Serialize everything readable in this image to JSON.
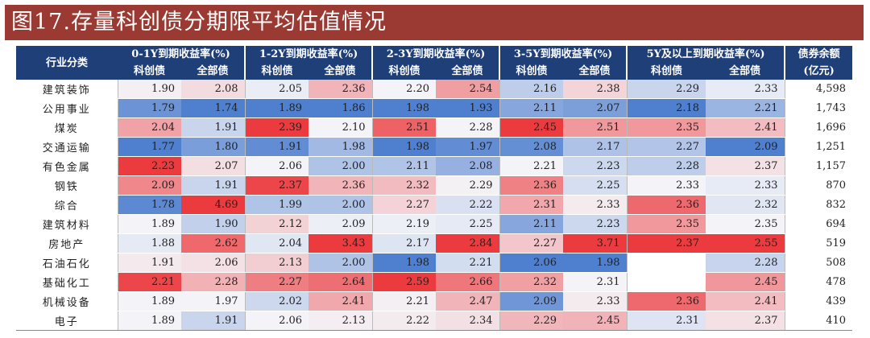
{
  "title": "图17.存量科创债分期限平均估值情况",
  "header": {
    "industry": "行业分类",
    "groups": [
      "0-1Y到期收益率(%)",
      "1-2Y到期收益率(%)",
      "2-3Y到期收益率(%)",
      "3-5Y到期收益率(%)",
      "5Y及以上到期收益率(%)"
    ],
    "sub": [
      "科创债",
      "全部债"
    ],
    "balance_l1": "债券余额",
    "balance_l2": "(亿元)"
  },
  "rows": [
    {
      "name": "建筑装饰",
      "v": [
        "1.90",
        "2.08",
        "2.05",
        "2.36",
        "2.20",
        "2.54",
        "2.16",
        "2.38",
        "2.29",
        "2.33"
      ],
      "bal": "4,598"
    },
    {
      "name": "公用事业",
      "v": [
        "1.79",
        "1.74",
        "1.89",
        "1.86",
        "1.98",
        "1.93",
        "2.11",
        "2.07",
        "2.18",
        "2.21"
      ],
      "bal": "1,743"
    },
    {
      "name": "煤炭",
      "v": [
        "2.04",
        "1.91",
        "2.39",
        "2.10",
        "2.51",
        "2.28",
        "2.45",
        "2.51",
        "2.35",
        "2.41"
      ],
      "bal": "1,696"
    },
    {
      "name": "交通运输",
      "v": [
        "1.77",
        "1.80",
        "1.91",
        "1.98",
        "1.98",
        "1.97",
        "2.08",
        "2.17",
        "2.27",
        "2.09"
      ],
      "bal": "1,251"
    },
    {
      "name": "有色金属",
      "v": [
        "2.23",
        "2.07",
        "2.06",
        "2.00",
        "2.11",
        "2.08",
        "2.21",
        "2.23",
        "2.28",
        "2.37"
      ],
      "bal": "1,157"
    },
    {
      "name": "钢铁",
      "v": [
        "2.09",
        "1.91",
        "2.37",
        "2.36",
        "2.32",
        "2.29",
        "2.36",
        "2.25",
        "2.33",
        "2.33"
      ],
      "bal": "870"
    },
    {
      "name": "综合",
      "v": [
        "1.78",
        "4.69",
        "1.99",
        "2.00",
        "2.27",
        "2.22",
        "2.31",
        "2.33",
        "2.36",
        "2.32"
      ],
      "bal": "832"
    },
    {
      "name": "建筑材料",
      "v": [
        "1.89",
        "1.90",
        "2.12",
        "2.09",
        "2.19",
        "2.25",
        "2.11",
        "2.23",
        "2.35",
        "2.35"
      ],
      "bal": "694"
    },
    {
      "name": "房地产",
      "v": [
        "1.88",
        "2.62",
        "2.04",
        "3.43",
        "2.17",
        "2.84",
        "2.27",
        "3.71",
        "2.37",
        "2.55"
      ],
      "bal": "519"
    },
    {
      "name": "石油石化",
      "v": [
        "1.91",
        "2.06",
        "2.13",
        "2.00",
        "1.98",
        "2.21",
        "2.06",
        "1.98",
        "",
        "2.28"
      ],
      "bal": "508"
    },
    {
      "name": "基础化工",
      "v": [
        "2.21",
        "2.28",
        "2.27",
        "2.64",
        "2.59",
        "2.66",
        "2.32",
        "2.31",
        "",
        "2.45"
      ],
      "bal": "478"
    },
    {
      "name": "机械设备",
      "v": [
        "1.89",
        "1.97",
        "2.02",
        "2.41",
        "2.21",
        "2.47",
        "2.09",
        "2.33",
        "2.36",
        "2.41"
      ],
      "bal": "439"
    },
    {
      "name": "电子",
      "v": [
        "1.89",
        "1.91",
        "2.06",
        "2.13",
        "2.22",
        "2.34",
        "2.29",
        "2.45",
        "2.31",
        "2.37"
      ],
      "bal": "410"
    }
  ],
  "colors": {
    "title_bg": "#9a3a32",
    "header_bg": "#1f3f78",
    "low": "#4f7fcf",
    "mid": "#f4f4f8",
    "high": "#ec3b3f"
  }
}
